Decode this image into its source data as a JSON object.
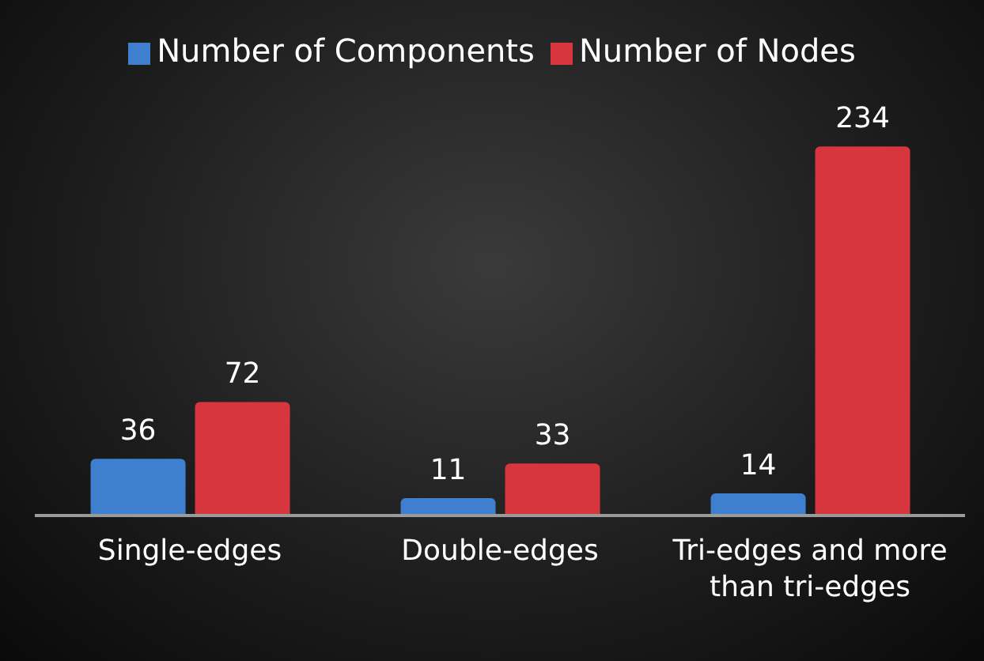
{
  "chart_data": {
    "type": "bar",
    "categories": [
      "Single-edges",
      "Double-edges",
      "Tri-edges and more than tri-edges"
    ],
    "series": [
      {
        "name": "Number of Components",
        "color": "#3f7fd0",
        "values": [
          36,
          11,
          14
        ]
      },
      {
        "name": "Number of Nodes",
        "color": "#d8363f",
        "values": [
          72,
          33,
          234
        ]
      }
    ],
    "data_labels": true,
    "legend": "top",
    "grid": false
  }
}
